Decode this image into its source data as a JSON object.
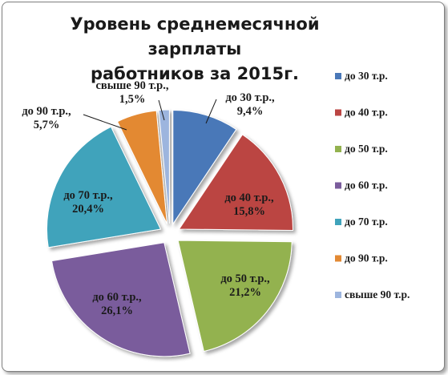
{
  "chart_data": {
    "type": "pie",
    "title_lines": [
      "Уровень среднемесячной зарплаты",
      "работников за 2015г."
    ],
    "legend_position": "right",
    "exploded": true,
    "slices": [
      {
        "name": "до 30 т.р.",
        "value": 9.4,
        "label": [
          "до 30 т.р.,",
          "9,4%"
        ],
        "color": "#4a78b8"
      },
      {
        "name": "до 40 т.р.",
        "value": 15.8,
        "label": [
          "до 40 т.р.,",
          "15,8%"
        ],
        "color": "#bb4543"
      },
      {
        "name": "до 50 т.р.",
        "value": 21.2,
        "label": [
          "до 50 т.р.,",
          "21,2%"
        ],
        "color": "#93b24f"
      },
      {
        "name": "до 60 т.р.",
        "value": 26.1,
        "label": [
          "до 60 т.р.,",
          "26,1%"
        ],
        "color": "#7a5c9c"
      },
      {
        "name": "до 70 т.р.",
        "value": 20.4,
        "label": [
          "до 70 т.р.,",
          "20,4%"
        ],
        "color": "#3fa3bb"
      },
      {
        "name": "до 90 т.р.",
        "value": 5.7,
        "label": [
          "до 90 т.р.,",
          "5,7%"
        ],
        "color": "#e38933"
      },
      {
        "name": "свыше 90 т.р.",
        "value": 1.5,
        "label": [
          "свыше 90 т.р.,",
          "1,5%"
        ],
        "color": "#9db5de"
      }
    ]
  }
}
